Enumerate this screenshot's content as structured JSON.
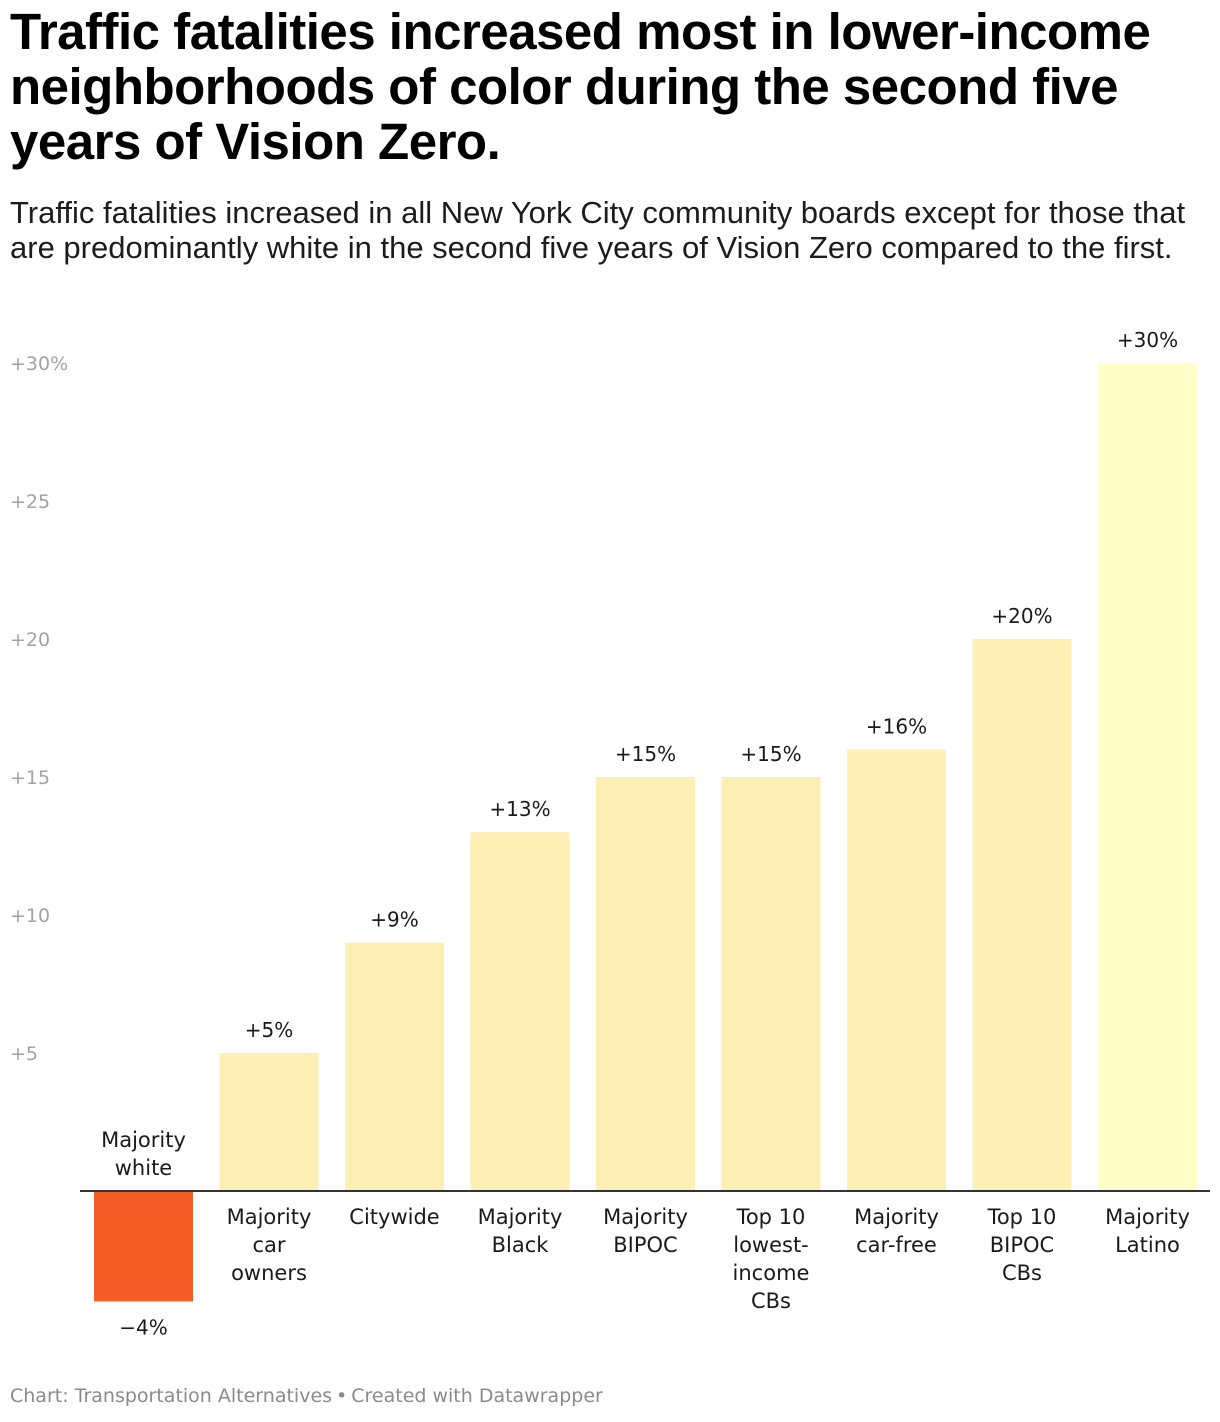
{
  "title": "Traffic fatalities increased most in lower-income neighborhoods of color during the second five years of Vision Zero.",
  "subtitle": "Traffic fatalities increased in all New York City community boards except for those that are predominantly white in the second five years of Vision Zero compared to the first.",
  "footer": {
    "source": "Chart: Transportation Alternatives",
    "separator": "•",
    "credit": "Created with Datawrapper"
  },
  "chart_data": {
    "type": "bar",
    "categories": [
      [
        "Majority",
        "white"
      ],
      [
        "Majority",
        "car",
        "owners"
      ],
      [
        "Citywide"
      ],
      [
        "Majority",
        "Black"
      ],
      [
        "Majority",
        "BIPOC"
      ],
      [
        "Top 10",
        "lowest-",
        "income",
        "CBs"
      ],
      [
        "Majority",
        "car-free"
      ],
      [
        "Top 10",
        "BIPOC",
        "CBs"
      ],
      [
        "Majority",
        "Latino"
      ]
    ],
    "values": [
      -4,
      5,
      9,
      13,
      15,
      15,
      16,
      20,
      30
    ],
    "value_labels": [
      "−4%",
      "+5%",
      "+9%",
      "+13%",
      "+15%",
      "+15%",
      "+16%",
      "+20%",
      "+30%"
    ],
    "colors": [
      "#f25e26",
      "#fdeeb3",
      "#fdeeb3",
      "#fdeeb3",
      "#fdeeb3",
      "#fdeeb3",
      "#fdeeb3",
      "#fef0b4",
      "#fffdc8"
    ],
    "yticks": [
      5,
      10,
      15,
      20,
      25,
      30
    ],
    "ytick_labels": [
      "+5",
      "+10",
      "+15",
      "+20",
      "+25",
      "+30%"
    ],
    "ylim": [
      -4,
      30
    ],
    "grid": false,
    "xlabel": "",
    "ylabel": ""
  }
}
